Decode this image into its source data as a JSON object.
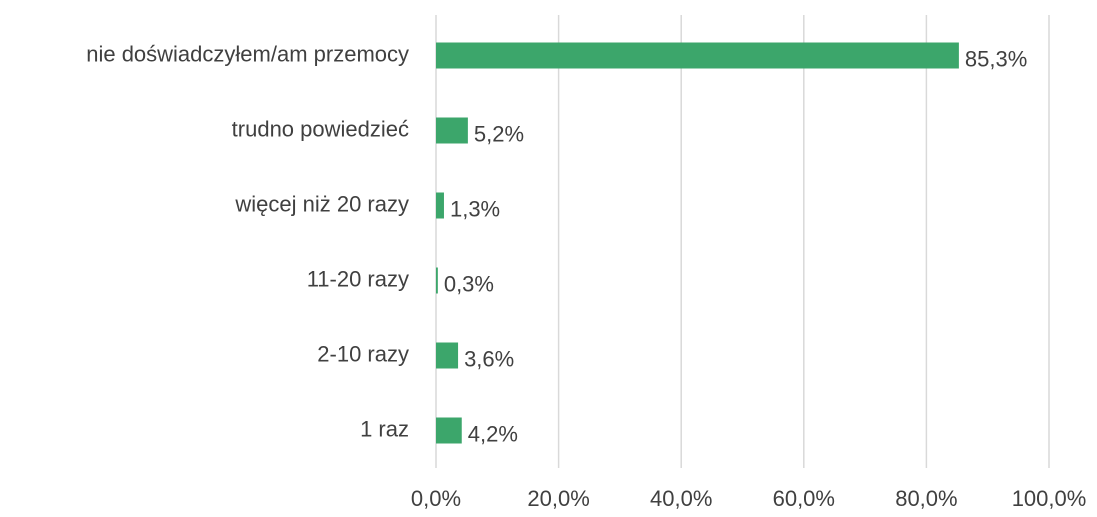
{
  "chart_data": {
    "type": "bar",
    "orientation": "horizontal",
    "categories": [
      "nie doświadczyłem/am przemocy",
      "trudno powiedzieć",
      "więcej niż 20 razy",
      "11-20 razy",
      "2-10 razy",
      "1 raz"
    ],
    "values": [
      85.3,
      5.2,
      1.3,
      0.3,
      3.6,
      4.2
    ],
    "value_labels": [
      "85,3%",
      "5,2%",
      "1,3%",
      "0,3%",
      "3,6%",
      "4,2%"
    ],
    "color": "#3ca66b",
    "xlim": [
      0,
      100
    ],
    "xticks": [
      {
        "value": 0,
        "label": "0,0%"
      },
      {
        "value": 20,
        "label": "20,0%"
      },
      {
        "value": 40,
        "label": "40,0%"
      },
      {
        "value": 60,
        "label": "60,0%"
      },
      {
        "value": 80,
        "label": "80,0%"
      },
      {
        "value": 100,
        "label": "100,0%"
      }
    ],
    "grid": true
  }
}
